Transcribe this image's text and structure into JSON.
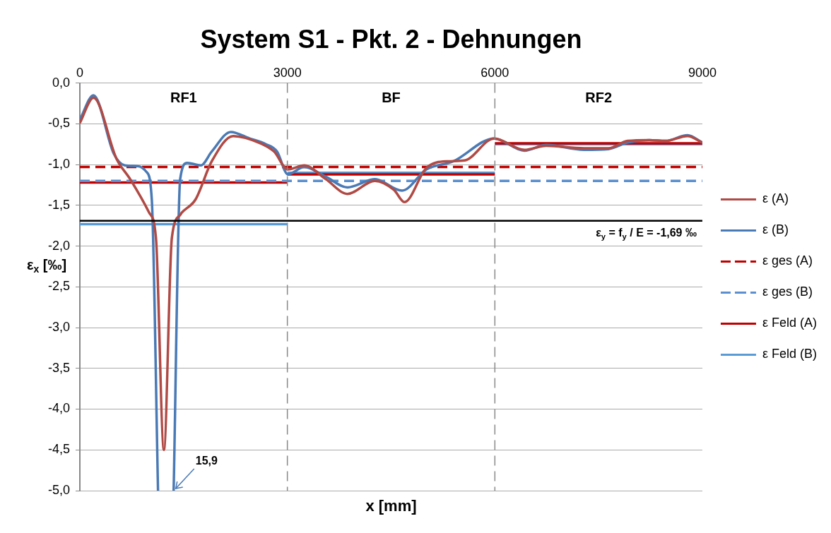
{
  "chart_data": {
    "type": "line",
    "title": "System S1 - Pkt. 2 - Dehnungen",
    "xlabel": "x [mm]",
    "ylabel": "ε$_{x}$ [‰]",
    "xlim": [
      0,
      9000
    ],
    "xticks": [
      0,
      3000,
      6000,
      9000
    ],
    "ylim": [
      -5,
      0
    ],
    "yticks": [
      {
        "value": -5,
        "label": "-5,0"
      },
      {
        "value": -4.5,
        "label": "-4,5"
      },
      {
        "value": -4,
        "label": "-4,0"
      },
      {
        "value": -3.5,
        "label": "-3,5"
      },
      {
        "value": -3,
        "label": "-3,0"
      },
      {
        "value": -2.5,
        "label": "-2,5"
      },
      {
        "value": -2,
        "label": "-2,0"
      },
      {
        "value": -1.5,
        "label": "-1,5"
      },
      {
        "value": -1,
        "label": "-1,0"
      },
      {
        "value": -0.5,
        "label": "-0,5"
      },
      {
        "value": 0,
        "label": "0,0"
      }
    ],
    "grid": "y",
    "legend": "right",
    "marker": "none",
    "series": [
      {
        "name": "ε (A)",
        "color": "#b04a45",
        "line_style": "solid",
        "x": [
          0,
          197,
          530,
          728,
          1002,
          1100,
          1215,
          1330,
          1450,
          1474,
          1671,
          1907,
          2217,
          2614,
          2807,
          3007,
          3243,
          3557,
          3868,
          4265,
          4540,
          4693,
          5011,
          5326,
          5562,
          5990,
          6427,
          6742,
          7288,
          7642,
          7921,
          8231,
          8467,
          8785,
          9000
        ],
        "values": [
          -0.49,
          -0.18,
          -0.93,
          -1.18,
          -1.59,
          -1.9,
          -4.5,
          -1.9,
          -1.62,
          -1.59,
          -1.43,
          -0.96,
          -0.65,
          -0.74,
          -0.84,
          -1.06,
          -1.01,
          -1.18,
          -1.36,
          -1.2,
          -1.31,
          -1.46,
          -1.04,
          -0.96,
          -0.95,
          -0.68,
          -0.82,
          -0.77,
          -0.8,
          -0.8,
          -0.71,
          -0.7,
          -0.71,
          -0.65,
          -0.73
        ]
      },
      {
        "name": "ε (B)",
        "color": "#4a7ab5",
        "line_style": "solid",
        "x": [
          0,
          197,
          492,
          649,
          845,
          963,
          1040,
          1130,
          1240,
          1356,
          1450,
          1553,
          1750,
          1907,
          2182,
          2455,
          2690,
          2850,
          3007,
          3243,
          3557,
          3868,
          4265,
          4658,
          5011,
          5401,
          5990,
          6427,
          6742,
          7288,
          7642,
          7921,
          8231,
          8467,
          8785,
          9000
        ],
        "values": [
          -0.45,
          -0.15,
          -0.87,
          -1.01,
          -1.02,
          -1.09,
          -1.43,
          -5,
          null,
          -5,
          -1.18,
          -0.98,
          -1.01,
          -0.84,
          -0.6,
          -0.68,
          -0.75,
          -0.84,
          -1.12,
          -1.03,
          -1.15,
          -1.28,
          -1.18,
          -1.32,
          -1.06,
          -0.96,
          -0.68,
          -0.83,
          -0.76,
          -0.82,
          -0.81,
          -0.73,
          -0.7,
          -0.71,
          -0.64,
          -0.73
        ]
      },
      {
        "name": "ε ges (A)",
        "color": "#c00000",
        "line_style": "dashed",
        "x": [
          0,
          9000
        ],
        "values": [
          -1.03,
          -1.03
        ]
      },
      {
        "name": "ε ges (B)",
        "color": "#5b8fd0",
        "line_style": "dashed",
        "x": [
          0,
          9000
        ],
        "values": [
          -1.2,
          -1.2
        ]
      },
      {
        "name": "ε Feld (A)",
        "color": "#c00000",
        "line_style": "solid",
        "x": [
          0,
          3000,
          3000,
          6000,
          6000,
          9000
        ],
        "values": [
          -1.22,
          -1.22,
          -1.12,
          -1.12,
          -0.74,
          -0.74
        ]
      },
      {
        "name": "ε Feld (B)",
        "color": "#5b9bd5",
        "line_style": "solid",
        "x": [
          0,
          3000,
          3000,
          6000,
          6000,
          9000
        ],
        "values": [
          -1.73,
          -1.73,
          -1.1,
          -1.1,
          -0.75,
          -0.75
        ]
      }
    ],
    "ref_lines": [
      {
        "axis": "y",
        "value": -1.69,
        "label": "ε$_{y}$ = f$_{y}$ / E = -1,69 ‰",
        "color": "#000000",
        "line_style": "solid"
      },
      {
        "axis": "x",
        "value": 3000,
        "color": "#888888",
        "line_style": "dashed"
      },
      {
        "axis": "x",
        "value": 6000,
        "color": "#888888",
        "line_style": "dashed"
      }
    ],
    "annotations": [
      "RF1",
      "BF",
      "RF2",
      {
        "text": "15,9",
        "x": 1356,
        "y": -5
      }
    ]
  }
}
